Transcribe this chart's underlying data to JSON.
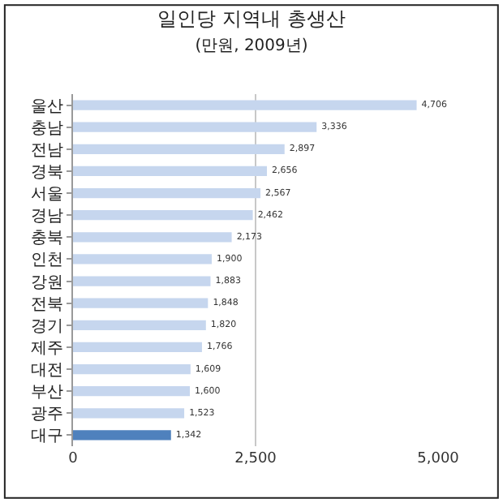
{
  "chart_data": {
    "type": "bar",
    "orientation": "horizontal",
    "title": "일인당 지역내 총생산",
    "subtitle": "(만원, 2009년)",
    "categories": [
      "울산",
      "충남",
      "전남",
      "경북",
      "서울",
      "경남",
      "충북",
      "인천",
      "강원",
      "전북",
      "경기",
      "제주",
      "대전",
      "부산",
      "광주",
      "대구"
    ],
    "values": [
      4706,
      3336,
      2897,
      2656,
      2567,
      2462,
      2173,
      1900,
      1883,
      1848,
      1820,
      1766,
      1609,
      1600,
      1523,
      1342
    ],
    "colors": [
      "#c6d6ee",
      "#c6d6ee",
      "#c6d6ee",
      "#c6d6ee",
      "#c6d6ee",
      "#c6d6ee",
      "#c6d6ee",
      "#c6d6ee",
      "#c6d6ee",
      "#c6d6ee",
      "#c6d6ee",
      "#c6d6ee",
      "#c6d6ee",
      "#c6d6ee",
      "#c6d6ee",
      "#4f81bd"
    ],
    "value_labels": [
      "4,706",
      "3,336",
      "2,897",
      "2,656",
      "2,567",
      "2,462",
      "2,173",
      "1,900",
      "1,883",
      "1,848",
      "1,820",
      "1,766",
      "1,609",
      "1,600",
      "1,523",
      "1,342"
    ],
    "xlim": [
      0,
      5000
    ],
    "xticks": [
      0,
      {
        "value": 2500,
        "label": "2,500"
      },
      {
        "value": 5000,
        "label": "5,000"
      }
    ],
    "grid": "x"
  }
}
